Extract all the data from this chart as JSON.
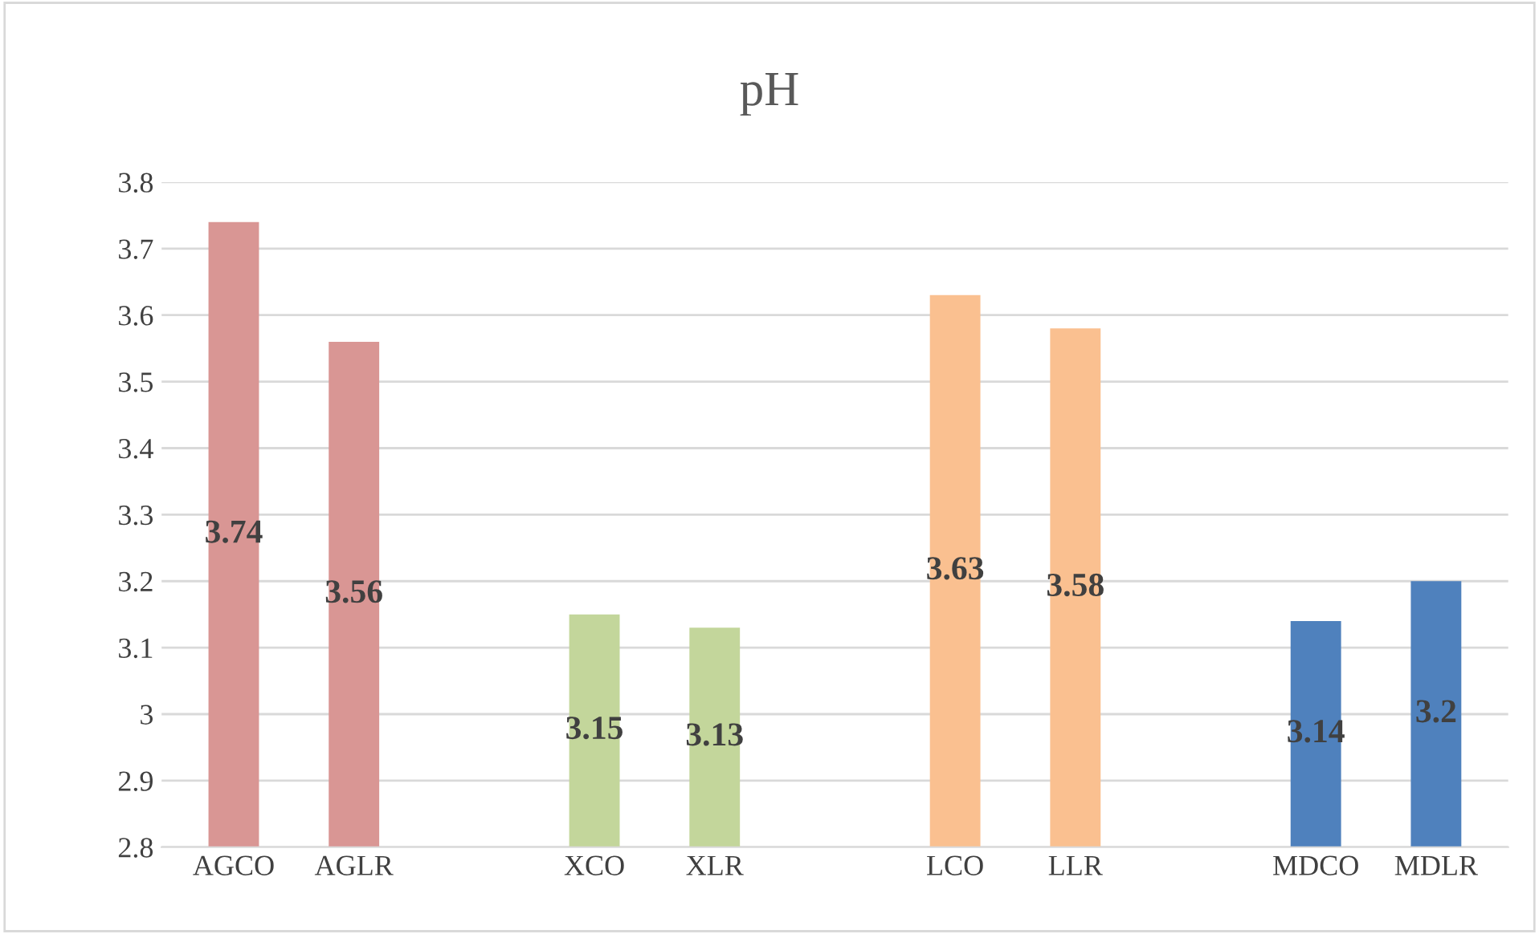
{
  "chart_data": {
    "type": "bar",
    "title": "pH",
    "categories": [
      "AGCO",
      "AGLR",
      null,
      "XCO",
      "XLR",
      null,
      "LCO",
      "LLR",
      null,
      "MDCO",
      "MDLR"
    ],
    "values": [
      3.74,
      3.56,
      null,
      3.15,
      3.13,
      null,
      3.63,
      3.58,
      null,
      3.14,
      3.2
    ],
    "colors": [
      "#d99694",
      "#d99694",
      null,
      "#c3d69b",
      "#c3d69b",
      null,
      "#fac090",
      "#fac090",
      null,
      "#4f81bd",
      "#4f81bd"
    ],
    "ylim": [
      2.8,
      3.8
    ],
    "yticks": [
      2.8,
      2.9,
      3,
      3.1,
      3.2,
      3.3,
      3.4,
      3.5,
      3.6,
      3.7,
      3.8
    ],
    "grid": "y",
    "data_labels": true,
    "legend": false
  }
}
